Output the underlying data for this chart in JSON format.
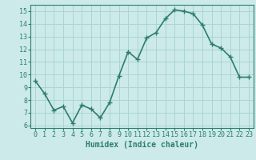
{
  "x": [
    0,
    1,
    2,
    3,
    4,
    5,
    6,
    7,
    8,
    9,
    10,
    11,
    12,
    13,
    14,
    15,
    16,
    17,
    18,
    19,
    20,
    21,
    22,
    23
  ],
  "y": [
    9.5,
    8.5,
    7.2,
    7.5,
    6.2,
    7.6,
    7.3,
    6.6,
    7.8,
    9.9,
    11.8,
    11.2,
    12.9,
    13.3,
    14.4,
    15.1,
    15.0,
    14.8,
    13.9,
    12.4,
    12.1,
    11.4,
    9.8,
    9.8
  ],
  "line_color": "#2e7d6e",
  "marker": "+",
  "marker_size": 4,
  "bg_color": "#cceaea",
  "grid_color": "#aad4d4",
  "ylim": [
    5.8,
    15.5
  ],
  "yticks": [
    6,
    7,
    8,
    9,
    10,
    11,
    12,
    13,
    14,
    15
  ],
  "xlim": [
    -0.5,
    23.5
  ],
  "xlabel": "Humidex (Indice chaleur)",
  "xlabel_fontsize": 7,
  "tick_fontsize": 6,
  "linewidth": 1.2
}
